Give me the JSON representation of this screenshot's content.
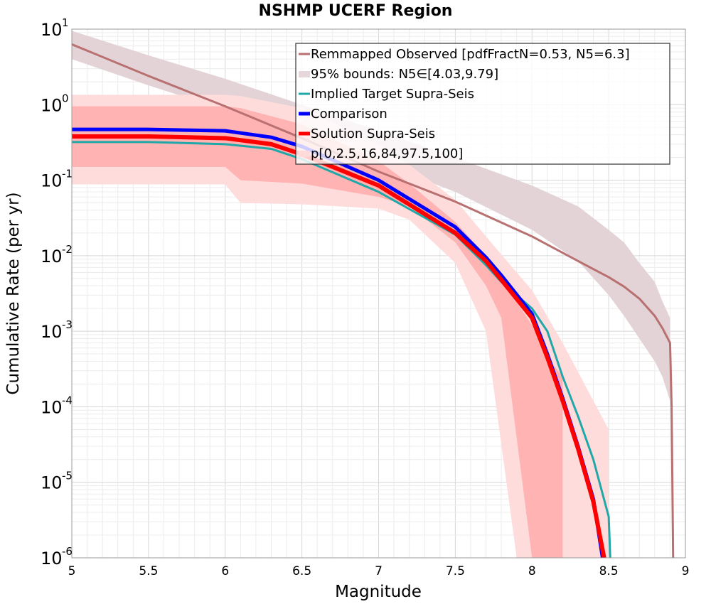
{
  "chart_data": {
    "type": "line",
    "title": "NSHMP UCERF Region",
    "xlabel": "Magnitude",
    "ylabel": "Cumulative Rate (per yr)",
    "xlim": [
      5,
      9
    ],
    "ylim": [
      1e-06,
      10
    ],
    "y_scale": "log",
    "x_ticks": [
      "5",
      "5.5",
      "6",
      "6.5",
      "7",
      "7.5",
      "8",
      "8.5",
      "9"
    ],
    "y_ticks": [
      {
        "base": "10",
        "exp": "1",
        "value": 10
      },
      {
        "base": "10",
        "exp": "0",
        "value": 1
      },
      {
        "base": "10",
        "exp": "-1",
        "value": 0.1
      },
      {
        "base": "10",
        "exp": "-2",
        "value": 0.01
      },
      {
        "base": "10",
        "exp": "-3",
        "value": 0.001
      },
      {
        "base": "10",
        "exp": "-4",
        "value": 0.0001
      },
      {
        "base": "10",
        "exp": "-5",
        "value": 1e-05
      },
      {
        "base": "10",
        "exp": "-6",
        "value": 1e-06
      }
    ],
    "grid": true,
    "legend_position": "top-right",
    "legend": [
      {
        "label": "Remmapped Observed [pdfFractN=0.53, N5=6.3]",
        "color": "#b87070",
        "style": "line"
      },
      {
        "label": "95% bounds: N5∈[4.03,9.79]",
        "color": "#e6d8da",
        "style": "band"
      },
      {
        "label": "Implied Target Supra-Seis",
        "color": "#20a8a8",
        "style": "line"
      },
      {
        "label": "Comparison",
        "color": "#0000ff",
        "style": "thick-line"
      },
      {
        "label": "Solution Supra-Seis",
        "color": "#ff0000",
        "style": "thick-line"
      },
      {
        "label": "p[0,2.5,16,84,97.5,100]",
        "color": "#ffdada",
        "style": "band"
      }
    ],
    "bands": [
      {
        "name": "95% bounds: N5∈[4.03,9.79]",
        "color": "#e3d3d6",
        "x": [
          5.0,
          5.5,
          6.0,
          6.5,
          7.0,
          7.5,
          8.0,
          8.3,
          8.5,
          8.6,
          8.7,
          8.8,
          8.85,
          8.9
        ],
        "upper": [
          9.5,
          4.5,
          2.2,
          1.0,
          0.45,
          0.2,
          0.085,
          0.045,
          0.022,
          0.015,
          0.008,
          0.0045,
          0.0025,
          0.0015
        ],
        "lower": [
          4.0,
          1.8,
          0.85,
          0.38,
          0.17,
          0.07,
          0.022,
          0.0085,
          0.003,
          0.0016,
          0.0008,
          0.0004,
          0.00025,
          0.00012
        ]
      },
      {
        "name": "p[0,2.5,16,84,97.5,100] outer",
        "color": "#ffdcdc",
        "x": [
          5.0,
          6.0,
          6.1,
          6.5,
          7.0,
          7.2,
          7.5,
          7.7,
          7.9,
          8.0,
          8.2,
          8.4,
          8.5
        ],
        "upper": [
          1.35,
          1.35,
          1.3,
          0.9,
          0.3,
          0.16,
          0.055,
          0.018,
          0.006,
          0.0035,
          0.0007,
          0.00012,
          5e-05
        ],
        "lower": [
          0.088,
          0.088,
          0.05,
          0.048,
          0.042,
          0.03,
          0.008,
          0.001,
          1e-06,
          1e-06,
          1e-06,
          1e-06,
          1e-06
        ]
      },
      {
        "name": "p[0,2.5,16,84,97.5,100] inner",
        "color": "#ffb3b3",
        "x": [
          5.0,
          6.0,
          6.1,
          6.5,
          7.0,
          7.2,
          7.5,
          7.7,
          7.8,
          8.0,
          8.1,
          8.2
        ],
        "upper": [
          0.95,
          0.95,
          0.9,
          0.55,
          0.18,
          0.09,
          0.028,
          0.01,
          0.005,
          0.0012,
          0.00045,
          0.00025
        ],
        "lower": [
          0.15,
          0.15,
          0.1,
          0.09,
          0.06,
          0.045,
          0.015,
          0.004,
          0.0015,
          1e-06,
          1e-06,
          1e-06
        ]
      }
    ],
    "series": [
      {
        "name": "Remmapped Observed [pdfFractN=0.53, N5=6.3]",
        "color": "#b87070",
        "width": 3,
        "x": [
          5.0,
          5.5,
          6.0,
          6.5,
          7.0,
          7.5,
          8.0,
          8.3,
          8.5,
          8.6,
          8.7,
          8.8,
          8.85,
          8.9,
          8.91,
          8.92
        ],
        "y": [
          6.3,
          2.4,
          0.95,
          0.36,
          0.13,
          0.052,
          0.018,
          0.0085,
          0.0052,
          0.0039,
          0.0027,
          0.0016,
          0.0011,
          0.0007,
          0.0001,
          1e-06
        ]
      },
      {
        "name": "Implied Target Supra-Seis",
        "color": "#20a8a8",
        "width": 3,
        "x": [
          5.0,
          5.5,
          6.0,
          6.3,
          6.5,
          7.0,
          7.5,
          7.7,
          7.8,
          8.0,
          8.1,
          8.2,
          8.3,
          8.4,
          8.5,
          8.51
        ],
        "y": [
          0.32,
          0.32,
          0.3,
          0.26,
          0.19,
          0.07,
          0.019,
          0.0075,
          0.0045,
          0.002,
          0.001,
          0.00025,
          7.5e-05,
          2e-05,
          3.5e-06,
          1e-06
        ]
      },
      {
        "name": "Comparison",
        "color": "#0000ff",
        "width": 5,
        "x": [
          5.0,
          5.5,
          6.0,
          6.3,
          6.5,
          7.0,
          7.5,
          7.7,
          7.8,
          8.0,
          8.1,
          8.2,
          8.3,
          8.4,
          8.46
        ],
        "y": [
          0.47,
          0.47,
          0.45,
          0.37,
          0.28,
          0.1,
          0.024,
          0.0095,
          0.0055,
          0.0017,
          0.0005,
          0.00013,
          3e-05,
          6e-06,
          1e-06
        ]
      },
      {
        "name": "Solution Supra-Seis",
        "color": "#ff0000",
        "width": 6,
        "x": [
          5.0,
          5.5,
          6.0,
          6.3,
          6.5,
          7.0,
          7.5,
          7.7,
          7.8,
          8.0,
          8.1,
          8.2,
          8.3,
          8.4,
          8.47
        ],
        "y": [
          0.38,
          0.38,
          0.36,
          0.3,
          0.22,
          0.085,
          0.02,
          0.0085,
          0.0048,
          0.0015,
          0.00045,
          0.00012,
          2.8e-05,
          5.5e-06,
          1e-06
        ]
      }
    ]
  }
}
